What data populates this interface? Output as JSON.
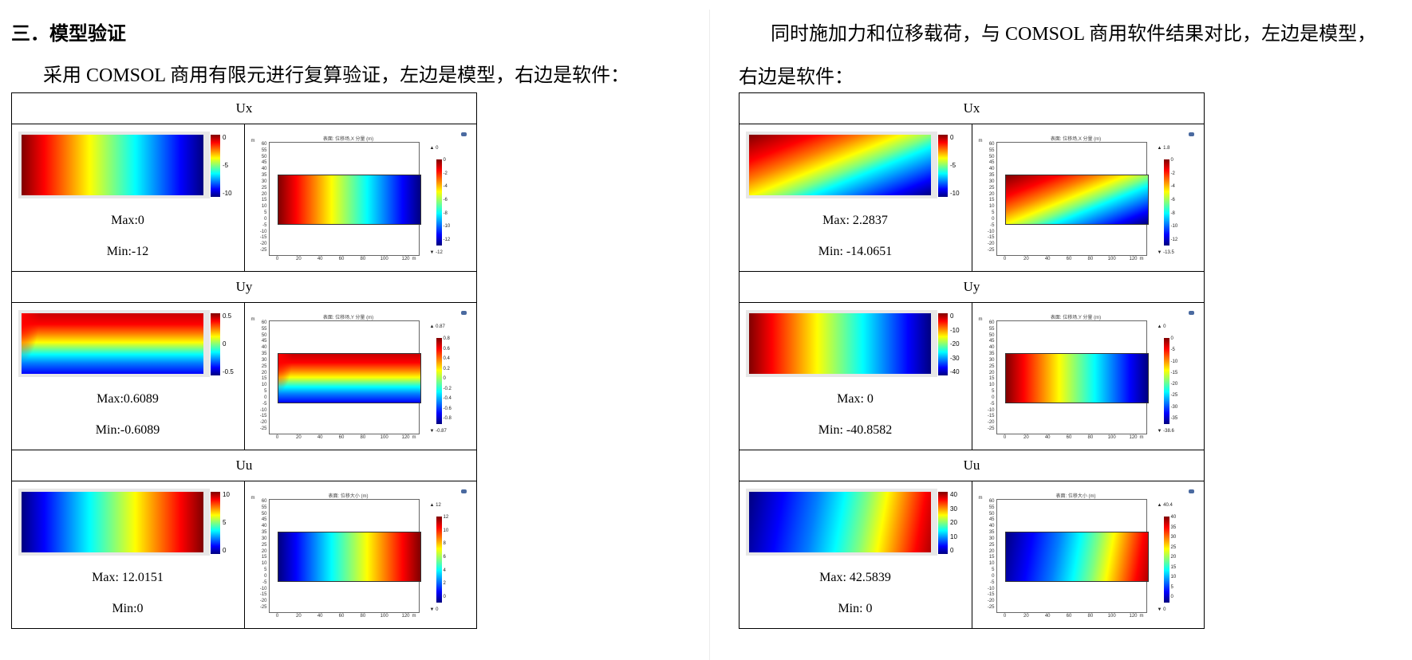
{
  "left": {
    "heading": "三．模型验证",
    "paragraph": "采用 COMSOL 商用有限元进行复算验证，左边是模型，右边是软件："
  },
  "right": {
    "paragraph_line1": "同时施加力和位移载荷，与 COMSOL 商用软件结果对比，左边是模型，",
    "paragraph_line2": "右边是软件："
  },
  "software_plot": {
    "y_ticks": [
      "60",
      "55",
      "50",
      "45",
      "40",
      "35",
      "30",
      "25",
      "20",
      "15",
      "10",
      "5",
      "0",
      "-5",
      "-10",
      "-15",
      "-20",
      "-25"
    ],
    "x_ticks": [
      "0",
      "20",
      "40",
      "60",
      "80",
      "100",
      "120"
    ],
    "x_unit": "m",
    "y_unit": "m"
  },
  "colors": {
    "jet": [
      "#00007f",
      "#0000ff",
      "#007fff",
      "#00ffff",
      "#7fff7f",
      "#ffff00",
      "#ff7f00",
      "#ff0000",
      "#7f0000"
    ]
  },
  "tables": [
    {
      "id": "left",
      "rows": [
        {
          "header": "Ux",
          "max": "Max:0",
          "min": "Min:-12",
          "model_ticks": [
            "0",
            "-5",
            "-10"
          ],
          "model_dir": "to left",
          "model_custom": "",
          "soft_title": "表面: 位移场,X 分量 (m)",
          "soft_top": "0",
          "soft_bot": "-12",
          "soft_ticks": [
            "0",
            "-2",
            "-4",
            "-6",
            "-8",
            "-10",
            "-12"
          ],
          "soft_dir": "to left",
          "soft_custom": ""
        },
        {
          "header": "Uy",
          "max": "Max:0.6089",
          "min": "Min:-0.6089",
          "model_ticks": [
            "0.5",
            "0",
            "-0.5"
          ],
          "model_dir": "to top",
          "model_custom": "uy",
          "soft_title": "表面: 位移场,Y 分量 (m)",
          "soft_top": "0.87",
          "soft_bot": "-0.87",
          "soft_ticks": [
            "0.8",
            "0.6",
            "0.4",
            "0.2",
            "0",
            "-0.2",
            "-0.4",
            "-0.6",
            "-0.8"
          ],
          "soft_dir": "to top",
          "soft_custom": "uy"
        },
        {
          "header": "Uu",
          "max": "Max: 12.0151",
          "min": "Min:0",
          "model_ticks": [
            "10",
            "5",
            "0"
          ],
          "model_dir": "to right",
          "model_custom": "",
          "soft_title": "表面: 位移大小 (m)",
          "soft_top": "12",
          "soft_bot": "0",
          "soft_ticks": [
            "12",
            "10",
            "8",
            "6",
            "4",
            "2",
            "0"
          ],
          "soft_dir": "to right",
          "soft_custom": ""
        }
      ]
    },
    {
      "id": "right",
      "rows": [
        {
          "header": "Ux",
          "max": "Max: 2.2837",
          "min": "Min: -14.0651",
          "model_ticks": [
            "0",
            "-5",
            "-10"
          ],
          "model_dir": "to bottom right",
          "model_custom": "ux2",
          "soft_title": "表面: 位移场,X 分量 (m)",
          "soft_top": "1.8",
          "soft_bot": "-13.5",
          "soft_ticks": [
            "0",
            "-2",
            "-4",
            "-6",
            "-8",
            "-10",
            "-12"
          ],
          "soft_dir": "to bottom right",
          "soft_custom": "ux2"
        },
        {
          "header": "Uy",
          "max": "Max: 0",
          "min": "Min: -40.8582",
          "model_ticks": [
            "0",
            "-10",
            "-20",
            "-30",
            "-40"
          ],
          "model_dir": "to left",
          "model_custom": "",
          "soft_title": "表面: 位移场,Y 分量 (m)",
          "soft_top": "0",
          "soft_bot": "-38.6",
          "soft_ticks": [
            "0",
            "-5",
            "-10",
            "-15",
            "-20",
            "-25",
            "-30",
            "-35"
          ],
          "soft_dir": "to left",
          "soft_custom": ""
        },
        {
          "header": "Uu",
          "max": "Max: 42.5839",
          "min": "Min: 0",
          "model_ticks": [
            "40",
            "30",
            "20",
            "10",
            "0"
          ],
          "model_dir": "to right",
          "model_custom": "uu2",
          "soft_title": "表面: 位移大小 (m)",
          "soft_top": "40.4",
          "soft_bot": "0",
          "soft_ticks": [
            "40",
            "35",
            "30",
            "25",
            "20",
            "15",
            "10",
            "5",
            "0"
          ],
          "soft_dir": "to right",
          "soft_custom": "uu2"
        }
      ]
    }
  ]
}
